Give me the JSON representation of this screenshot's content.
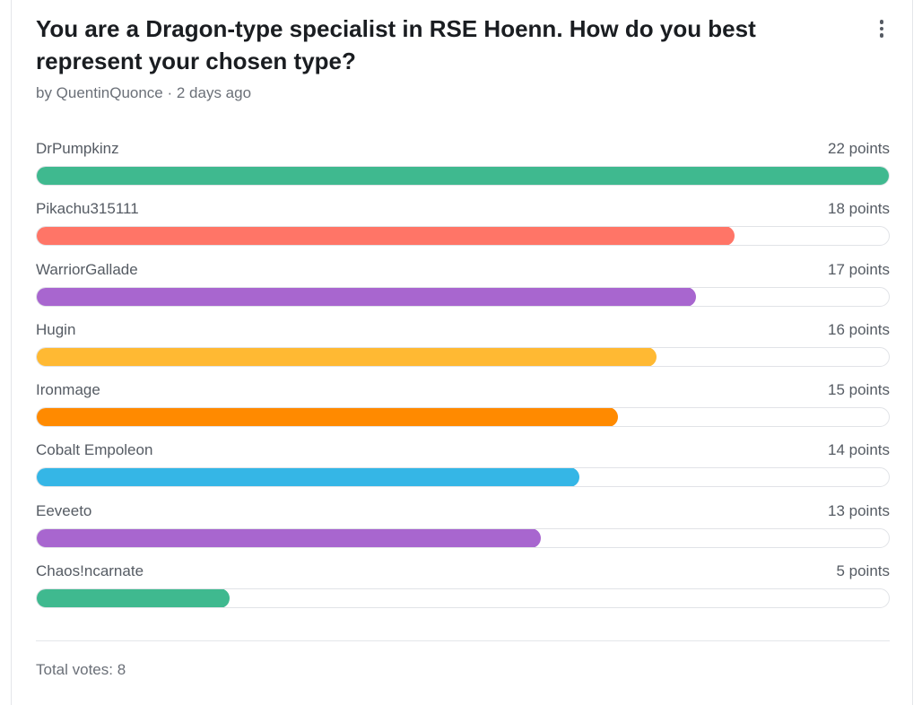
{
  "poll": {
    "title": "You are a Dragon-type specialist in RSE Hoenn. How do you best represent your chosen type?",
    "meta": "by QuentinQuonce · 2 days ago",
    "menu_icon": "kebab-menu-icon",
    "max_points": 22,
    "options": [
      {
        "label": "DrPumpkinz",
        "points_text": "22 points",
        "points": 22,
        "color": "#3fb98f"
      },
      {
        "label": "Pikachu315111",
        "points_text": "18 points",
        "points": 18,
        "color": "#ff7567"
      },
      {
        "label": "WarriorGallade",
        "points_text": "17 points",
        "points": 17,
        "color": "#a866cf"
      },
      {
        "label": "Hugin",
        "points_text": "16 points",
        "points": 16,
        "color": "#ffb933"
      },
      {
        "label": "Ironmage",
        "points_text": "15 points",
        "points": 15,
        "color": "#ff8a00"
      },
      {
        "label": "Cobalt Empoleon",
        "points_text": "14 points",
        "points": 14,
        "color": "#35b6e6"
      },
      {
        "label": "Eeveeto",
        "points_text": "13 points",
        "points": 13,
        "color": "#a866cf"
      },
      {
        "label": "Chaos!ncarnate",
        "points_text": "5 points",
        "points": 5,
        "color": "#3fb98f"
      }
    ],
    "total": "Total votes: 8"
  }
}
